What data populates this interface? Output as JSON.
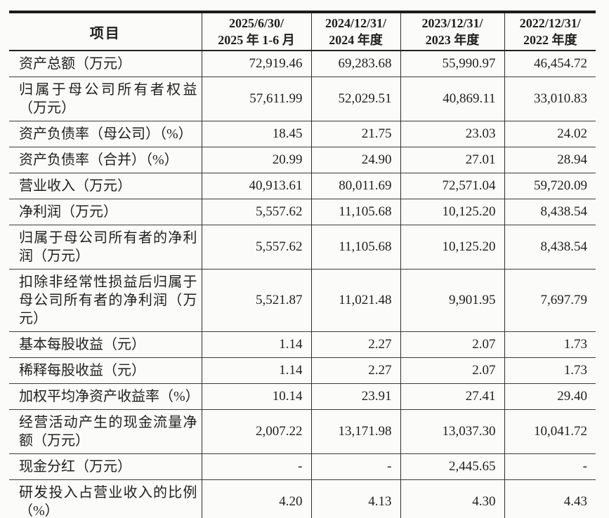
{
  "colors": {
    "background": "#fbfbf9",
    "rule_thick": "#1c1c1c",
    "rule_thin": "#3c3c3c",
    "text": "#1f1f1f"
  },
  "table": {
    "header": {
      "item_label": "项目",
      "periods": [
        {
          "line1": "2025/6/30/",
          "line2": "2025 年 1-6 月"
        },
        {
          "line1": "2024/12/31/",
          "line2": "2024 年度"
        },
        {
          "line1": "2023/12/31/",
          "line2": "2023 年度"
        },
        {
          "line1": "2022/12/31/",
          "line2": "2022 年度"
        }
      ]
    },
    "rows": [
      {
        "label": "资产总额（万元）",
        "values": [
          "72,919.46",
          "69,283.68",
          "55,990.97",
          "46,454.72"
        ]
      },
      {
        "label": "归属于母公司所有者权益（万元）",
        "values": [
          "57,611.99",
          "52,029.51",
          "40,869.11",
          "33,010.83"
        ]
      },
      {
        "label": "资产负债率（母公司）（%）",
        "values": [
          "18.45",
          "21.75",
          "23.03",
          "24.02"
        ]
      },
      {
        "label": "资产负债率（合并）（%）",
        "values": [
          "20.99",
          "24.90",
          "27.01",
          "28.94"
        ]
      },
      {
        "label": "营业收入（万元）",
        "values": [
          "40,913.61",
          "80,011.69",
          "72,571.04",
          "59,720.09"
        ]
      },
      {
        "label": "净利润（万元）",
        "values": [
          "5,557.62",
          "11,105.68",
          "10,125.20",
          "8,438.54"
        ]
      },
      {
        "label": "归属于母公司所有者的净利润（万元）",
        "values": [
          "5,557.62",
          "11,105.68",
          "10,125.20",
          "8,438.54"
        ]
      },
      {
        "label": "扣除非经常性损益后归属于母公司所有者的净利润（万元）",
        "values": [
          "5,521.87",
          "11,021.48",
          "9,901.95",
          "7,697.79"
        ]
      },
      {
        "label": "基本每股收益（元）",
        "values": [
          "1.14",
          "2.27",
          "2.07",
          "1.73"
        ]
      },
      {
        "label": "稀释每股收益（元）",
        "values": [
          "1.14",
          "2.27",
          "2.07",
          "1.73"
        ]
      },
      {
        "label": "加权平均净资产收益率（%）",
        "values": [
          "10.14",
          "23.91",
          "27.41",
          "29.40"
        ]
      },
      {
        "label": "经营活动产生的现金流量净额（万元）",
        "values": [
          "2,007.22",
          "13,171.98",
          "13,037.30",
          "10,041.72"
        ]
      },
      {
        "label": "现金分红（万元）",
        "values": [
          "-",
          "-",
          "2,445.65",
          "-"
        ]
      },
      {
        "label": "研发投入占营业收入的比例（%）",
        "values": [
          "4.20",
          "4.13",
          "4.30",
          "4.43"
        ]
      }
    ]
  }
}
